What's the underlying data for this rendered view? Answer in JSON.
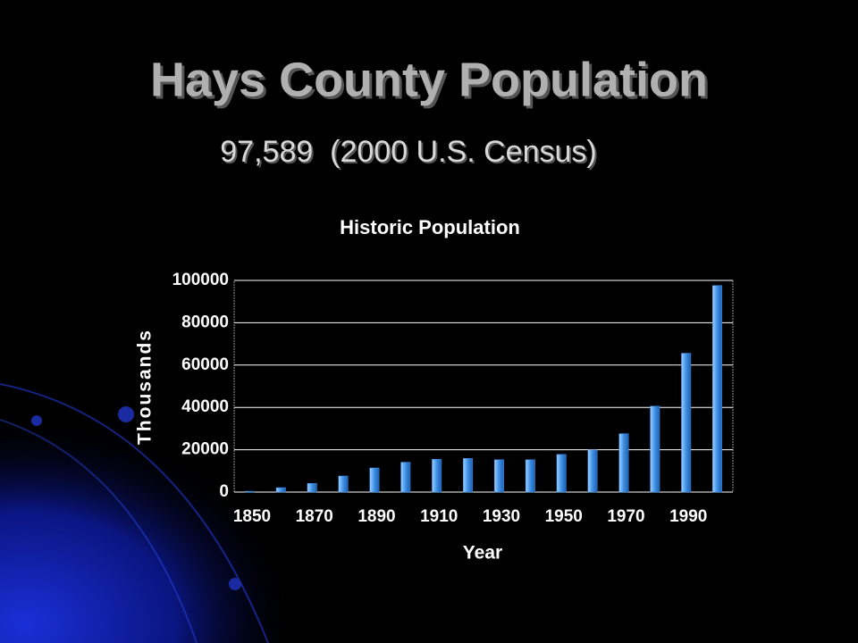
{
  "header": {
    "title": "Hays County Population",
    "subtitle": "97,589  (2000 U.S. Census)"
  },
  "chart_data": {
    "type": "bar",
    "title": "Historic Population",
    "x_label": "Year",
    "y_label": "Thousands",
    "categories": [
      "1850",
      null,
      "1870",
      null,
      "1890",
      null,
      "1910",
      null,
      "1930",
      null,
      "1950",
      null,
      "1970",
      null,
      "1990",
      null
    ],
    "values": [
      400,
      2100,
      4100,
      7600,
      11400,
      14100,
      15500,
      15900,
      15300,
      15300,
      17800,
      19900,
      27600,
      40600,
      65600,
      97600
    ],
    "color": "#3d8fe6",
    "ylim": [
      0,
      100000
    ],
    "yticks": [
      0,
      20000,
      40000,
      60000,
      80000,
      100000
    ],
    "grid": true
  }
}
